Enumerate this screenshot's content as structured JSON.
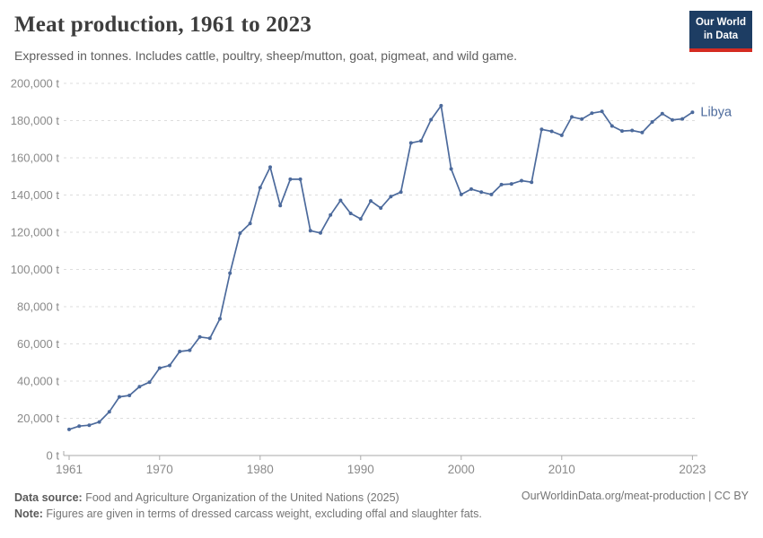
{
  "header": {
    "title": "Meat production, 1961 to 2023",
    "subtitle": "Expressed in tonnes. Includes cattle, poultry, sheep/mutton, goat, pigmeat, and wild game.",
    "logo": {
      "line1": "Our World",
      "line2": "in Data",
      "bg_color": "#1d3d63",
      "accent_color": "#d42b21"
    }
  },
  "chart_data": {
    "type": "line",
    "title": "Meat production, 1961 to 2023",
    "entity": "Libya",
    "unit": "t",
    "grid": true,
    "legend_position": "end-of-line-label",
    "ylim": [
      0,
      200000
    ],
    "yticks": [
      0,
      20000,
      40000,
      60000,
      80000,
      100000,
      120000,
      140000,
      160000,
      180000,
      200000
    ],
    "ytick_suffix": " t",
    "xticks": [
      1961,
      1970,
      1980,
      1990,
      2000,
      2010,
      2023
    ],
    "x": [
      1961,
      1962,
      1963,
      1964,
      1965,
      1966,
      1967,
      1968,
      1969,
      1970,
      1971,
      1972,
      1973,
      1974,
      1975,
      1976,
      1977,
      1978,
      1979,
      1980,
      1981,
      1982,
      1983,
      1984,
      1985,
      1986,
      1987,
      1988,
      1989,
      1990,
      1991,
      1992,
      1993,
      1994,
      1995,
      1996,
      1997,
      1998,
      1999,
      2000,
      2001,
      2002,
      2003,
      2004,
      2005,
      2006,
      2007,
      2008,
      2009,
      2010,
      2011,
      2012,
      2013,
      2014,
      2015,
      2016,
      2017,
      2018,
      2019,
      2020,
      2021,
      2022,
      2023
    ],
    "series": [
      {
        "name": "Libya",
        "color": "#4c6a9c",
        "values": [
          14000,
          15800,
          16300,
          18000,
          23500,
          31500,
          32300,
          37000,
          39400,
          47000,
          48400,
          55900,
          56600,
          63700,
          63000,
          73500,
          98000,
          119500,
          124700,
          144000,
          155000,
          134300,
          148500,
          148500,
          120800,
          119600,
          129300,
          137100,
          130100,
          127200,
          136800,
          133000,
          139200,
          141600,
          168000,
          169100,
          180500,
          188000,
          154000,
          140300,
          143200,
          141600,
          140300,
          145600,
          146000,
          147700,
          146900,
          175300,
          174200,
          172100,
          182000,
          180800,
          184000,
          184900,
          177100,
          174400,
          174700,
          173600,
          179300,
          183700,
          180400,
          180900,
          184500
        ]
      }
    ],
    "colors": {
      "gridline": "#dddddd",
      "axis": "#aaaaaa",
      "tick_label": "#8a8a8a"
    }
  },
  "footer": {
    "datasource_label": "Data source:",
    "datasource_text": " Food and Agriculture Organization of the United Nations (2025)",
    "note_label": "Note:",
    "note_text": " Figures are given in terms of dressed carcass weight, excluding offal and slaughter fats.",
    "link": "OurWorldinData.org/meat-production | CC BY"
  }
}
